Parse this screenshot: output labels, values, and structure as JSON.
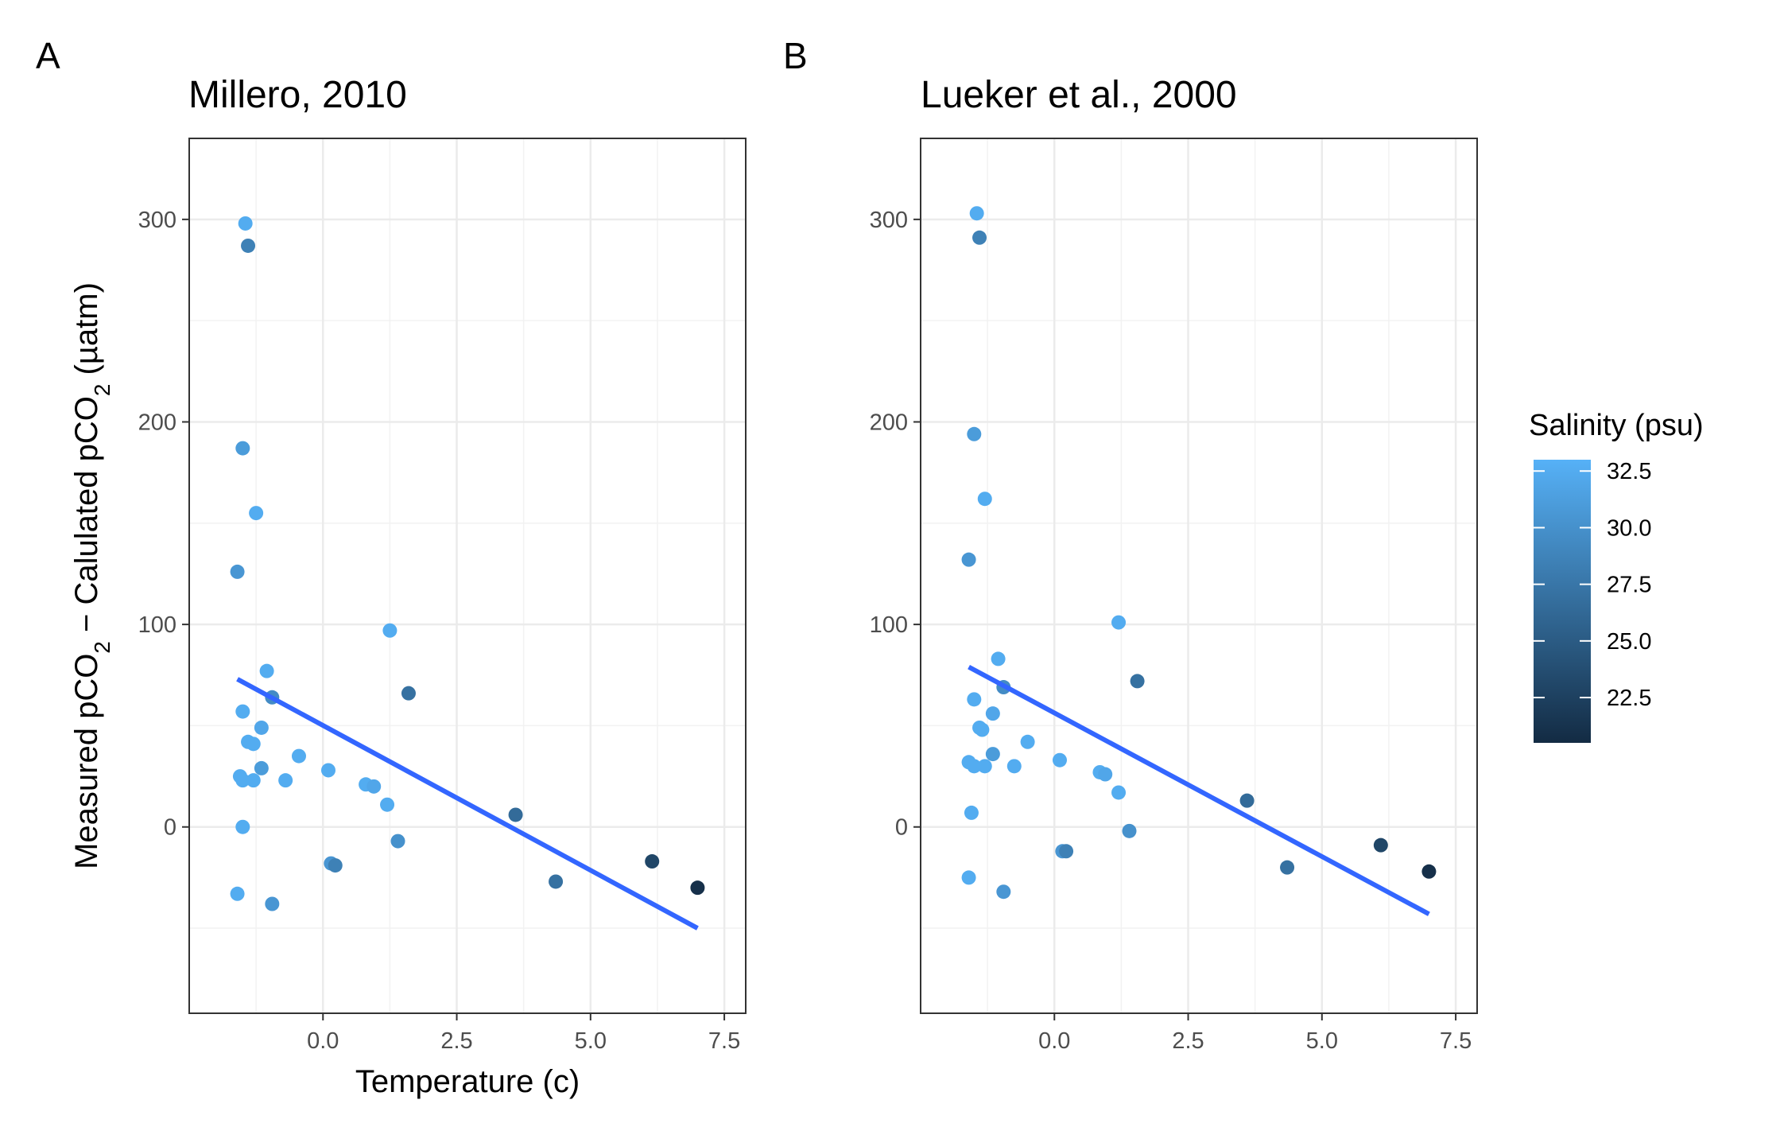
{
  "chart_data": [
    {
      "type": "scatter",
      "panel_label": "A",
      "title": "Millero, 2010",
      "xlabel": "Temperature (c)",
      "ylabel_parts": [
        "Measured pCO",
        "2",
        " − Calulated pCO",
        "2",
        " (µatm)"
      ],
      "xlim": [
        -2.5,
        7.9
      ],
      "ylim": [
        -92,
        340
      ],
      "x_ticks": [
        0.0,
        2.5,
        5.0,
        7.5
      ],
      "x_tick_labels": [
        "0.0",
        "2.5",
        "5.0",
        "7.5"
      ],
      "y_ticks": [
        0,
        100,
        200,
        300
      ],
      "y_tick_labels": [
        "0",
        "100",
        "200",
        "300"
      ],
      "grid": true,
      "trend_line": {
        "color": "#3366FF",
        "x": [
          -1.6,
          7.0
        ],
        "y": [
          73,
          -50
        ]
      },
      "points": [
        {
          "x": -1.45,
          "y": 298,
          "salinity": 32.5
        },
        {
          "x": -1.4,
          "y": 287,
          "salinity": 28.5
        },
        {
          "x": -1.5,
          "y": 187,
          "salinity": 31.0
        },
        {
          "x": -1.25,
          "y": 155,
          "salinity": 32.5
        },
        {
          "x": -1.6,
          "y": 126,
          "salinity": 30.5
        },
        {
          "x": 1.25,
          "y": 97,
          "salinity": 32.5
        },
        {
          "x": -1.05,
          "y": 77,
          "salinity": 32.5
        },
        {
          "x": 1.6,
          "y": 66,
          "salinity": 27.0
        },
        {
          "x": -0.95,
          "y": 64,
          "salinity": 29.5
        },
        {
          "x": -1.5,
          "y": 57,
          "salinity": 32.5
        },
        {
          "x": -1.15,
          "y": 49,
          "salinity": 32.0
        },
        {
          "x": -1.4,
          "y": 42,
          "salinity": 32.5
        },
        {
          "x": -1.3,
          "y": 41,
          "salinity": 32.5
        },
        {
          "x": -0.45,
          "y": 35,
          "salinity": 32.5
        },
        {
          "x": -1.15,
          "y": 29,
          "salinity": 31.0
        },
        {
          "x": 0.1,
          "y": 28,
          "salinity": 32.5
        },
        {
          "x": -1.55,
          "y": 25,
          "salinity": 32.5
        },
        {
          "x": -1.5,
          "y": 23,
          "salinity": 32.5
        },
        {
          "x": -1.3,
          "y": 23,
          "salinity": 32.5
        },
        {
          "x": -0.7,
          "y": 23,
          "salinity": 32.5
        },
        {
          "x": 0.8,
          "y": 21,
          "salinity": 32.5
        },
        {
          "x": 0.95,
          "y": 20,
          "salinity": 32.0
        },
        {
          "x": 1.2,
          "y": 11,
          "salinity": 32.5
        },
        {
          "x": 3.6,
          "y": 6,
          "salinity": 26.5
        },
        {
          "x": -1.5,
          "y": 0,
          "salinity": 32.5
        },
        {
          "x": 1.4,
          "y": -7,
          "salinity": 30.0
        },
        {
          "x": 6.15,
          "y": -17,
          "salinity": 23.0
        },
        {
          "x": 0.15,
          "y": -18,
          "salinity": 30.5
        },
        {
          "x": 0.23,
          "y": -19,
          "salinity": 28.5
        },
        {
          "x": 4.35,
          "y": -27,
          "salinity": 27.0
        },
        {
          "x": 7.0,
          "y": -30,
          "salinity": 21.0
        },
        {
          "x": -1.6,
          "y": -33,
          "salinity": 32.5
        },
        {
          "x": -0.95,
          "y": -38,
          "salinity": 30.5
        }
      ]
    },
    {
      "type": "scatter",
      "panel_label": "B",
      "title": "Lueker et al., 2000",
      "xlabel": "",
      "ylabel_parts": [],
      "xlim": [
        -2.5,
        7.9
      ],
      "ylim": [
        -92,
        340
      ],
      "x_ticks": [
        0.0,
        2.5,
        5.0,
        7.5
      ],
      "x_tick_labels": [
        "0.0",
        "2.5",
        "5.0",
        "7.5"
      ],
      "y_ticks": [
        0,
        100,
        200,
        300
      ],
      "y_tick_labels": [
        "0",
        "100",
        "200",
        "300"
      ],
      "grid": true,
      "trend_line": {
        "color": "#3366FF",
        "x": [
          -1.6,
          7.0
        ],
        "y": [
          79,
          -43
        ]
      },
      "points": [
        {
          "x": -1.45,
          "y": 303,
          "salinity": 32.5
        },
        {
          "x": -1.4,
          "y": 291,
          "salinity": 28.5
        },
        {
          "x": -1.5,
          "y": 194,
          "salinity": 31.0
        },
        {
          "x": -1.3,
          "y": 162,
          "salinity": 32.5
        },
        {
          "x": -1.6,
          "y": 132,
          "salinity": 30.5
        },
        {
          "x": 1.2,
          "y": 101,
          "salinity": 32.5
        },
        {
          "x": -1.05,
          "y": 83,
          "salinity": 32.5
        },
        {
          "x": 1.55,
          "y": 72,
          "salinity": 27.0
        },
        {
          "x": -0.95,
          "y": 69,
          "salinity": 29.5
        },
        {
          "x": -1.5,
          "y": 63,
          "salinity": 32.5
        },
        {
          "x": -1.15,
          "y": 56,
          "salinity": 32.0
        },
        {
          "x": -1.4,
          "y": 49,
          "salinity": 32.5
        },
        {
          "x": -1.35,
          "y": 48,
          "salinity": 32.5
        },
        {
          "x": -0.5,
          "y": 42,
          "salinity": 32.5
        },
        {
          "x": -1.15,
          "y": 36,
          "salinity": 31.0
        },
        {
          "x": 0.1,
          "y": 33,
          "salinity": 32.5
        },
        {
          "x": -1.6,
          "y": 32,
          "salinity": 32.5
        },
        {
          "x": -1.5,
          "y": 30,
          "salinity": 32.5
        },
        {
          "x": -1.3,
          "y": 30,
          "salinity": 32.5
        },
        {
          "x": -0.75,
          "y": 30,
          "salinity": 32.5
        },
        {
          "x": 0.85,
          "y": 27,
          "salinity": 32.5
        },
        {
          "x": 0.95,
          "y": 26,
          "salinity": 32.0
        },
        {
          "x": 1.2,
          "y": 17,
          "salinity": 32.5
        },
        {
          "x": 3.6,
          "y": 13,
          "salinity": 26.5
        },
        {
          "x": -1.55,
          "y": 7,
          "salinity": 32.5
        },
        {
          "x": 1.4,
          "y": -2,
          "salinity": 30.0
        },
        {
          "x": 6.1,
          "y": -9,
          "salinity": 23.0
        },
        {
          "x": 0.15,
          "y": -12,
          "salinity": 30.5
        },
        {
          "x": 0.22,
          "y": -12,
          "salinity": 28.5
        },
        {
          "x": 4.35,
          "y": -20,
          "salinity": 27.0
        },
        {
          "x": 7.0,
          "y": -22,
          "salinity": 21.0
        },
        {
          "x": -1.6,
          "y": -25,
          "salinity": 32.5
        },
        {
          "x": -0.95,
          "y": -32,
          "salinity": 30.5
        }
      ]
    }
  ],
  "legend": {
    "title": "Salinity (psu)",
    "position": "right",
    "range": [
      20.5,
      33.0
    ],
    "ticks": [
      22.5,
      25.0,
      27.5,
      30.0,
      32.5
    ],
    "tick_labels": [
      "22.5",
      "25.0",
      "27.5",
      "30.0",
      "32.5"
    ],
    "low_color": "#132B43",
    "high_color": "#56B1F7"
  }
}
